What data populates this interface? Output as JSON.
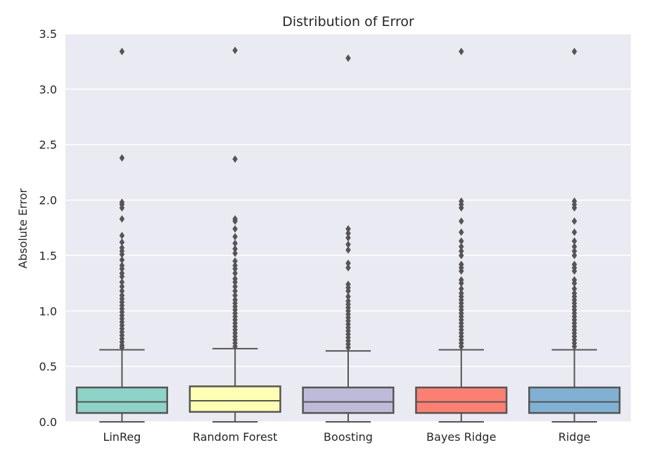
{
  "chart_data": {
    "type": "box",
    "title": "Distribution of Error",
    "xlabel": "",
    "ylabel": "Absolute Error",
    "ylim": [
      0,
      3.5
    ],
    "yticks": [
      "0.0",
      "0.5",
      "1.0",
      "1.5",
      "2.0",
      "2.5",
      "3.0",
      "3.5"
    ],
    "grid": true,
    "colors": {
      "background": "#eaeaf2",
      "grid": "#ffffff",
      "edge": "#555555",
      "text": "#262626"
    },
    "categories": [
      "LinReg",
      "Random Forest",
      "Boosting",
      "Bayes Ridge",
      "Ridge"
    ],
    "series": [
      {
        "category": "LinReg",
        "color": "#8dd3c7",
        "min": 0.0,
        "q1": 0.08,
        "median": 0.18,
        "q3": 0.31,
        "whisker_high": 0.65,
        "outliers": [
          3.34,
          2.38,
          1.98,
          1.96,
          1.93,
          1.83,
          1.68,
          1.62,
          1.57,
          1.54,
          1.51,
          1.46,
          1.41,
          1.38,
          1.34,
          1.31,
          1.26,
          1.22,
          1.18,
          1.14,
          1.11,
          1.08,
          1.05,
          1.02,
          0.99,
          0.96,
          0.93,
          0.9,
          0.87,
          0.84,
          0.81,
          0.78,
          0.75,
          0.72,
          0.69,
          0.67
        ]
      },
      {
        "category": "Random Forest",
        "color": "#ffffb3",
        "min": 0.0,
        "q1": 0.09,
        "median": 0.19,
        "q3": 0.32,
        "whisker_high": 0.66,
        "outliers": [
          3.35,
          2.37,
          1.83,
          1.81,
          1.74,
          1.67,
          1.61,
          1.56,
          1.52,
          1.45,
          1.41,
          1.38,
          1.34,
          1.29,
          1.26,
          1.22,
          1.18,
          1.14,
          1.1,
          1.07,
          1.04,
          1.01,
          0.98,
          0.95,
          0.92,
          0.89,
          0.86,
          0.83,
          0.8,
          0.77,
          0.74,
          0.71,
          0.68
        ]
      },
      {
        "category": "Boosting",
        "color": "#bebada",
        "min": 0.0,
        "q1": 0.08,
        "median": 0.18,
        "q3": 0.31,
        "whisker_high": 0.64,
        "outliers": [
          3.28,
          1.74,
          1.7,
          1.66,
          1.6,
          1.55,
          1.43,
          1.39,
          1.24,
          1.21,
          1.18,
          1.13,
          1.09,
          1.06,
          1.03,
          1.0,
          0.97,
          0.94,
          0.91,
          0.88,
          0.85,
          0.82,
          0.79,
          0.76,
          0.73,
          0.7,
          0.67
        ]
      },
      {
        "category": "Bayes Ridge",
        "color": "#fb8072",
        "min": 0.0,
        "q1": 0.08,
        "median": 0.18,
        "q3": 0.31,
        "whisker_high": 0.65,
        "outliers": [
          3.34,
          1.99,
          1.96,
          1.93,
          1.81,
          1.71,
          1.63,
          1.58,
          1.54,
          1.5,
          1.42,
          1.39,
          1.36,
          1.28,
          1.25,
          1.2,
          1.16,
          1.13,
          1.1,
          1.07,
          1.04,
          1.01,
          0.98,
          0.95,
          0.92,
          0.89,
          0.86,
          0.83,
          0.8,
          0.77,
          0.74,
          0.71,
          0.68
        ]
      },
      {
        "category": "Ridge",
        "color": "#80b1d3",
        "min": 0.0,
        "q1": 0.08,
        "median": 0.18,
        "q3": 0.31,
        "whisker_high": 0.65,
        "outliers": [
          3.34,
          1.99,
          1.96,
          1.93,
          1.81,
          1.71,
          1.63,
          1.58,
          1.54,
          1.5,
          1.42,
          1.39,
          1.36,
          1.28,
          1.25,
          1.2,
          1.16,
          1.13,
          1.1,
          1.07,
          1.04,
          1.01,
          0.98,
          0.95,
          0.92,
          0.89,
          0.86,
          0.83,
          0.8,
          0.77,
          0.74,
          0.71,
          0.68
        ]
      }
    ]
  }
}
